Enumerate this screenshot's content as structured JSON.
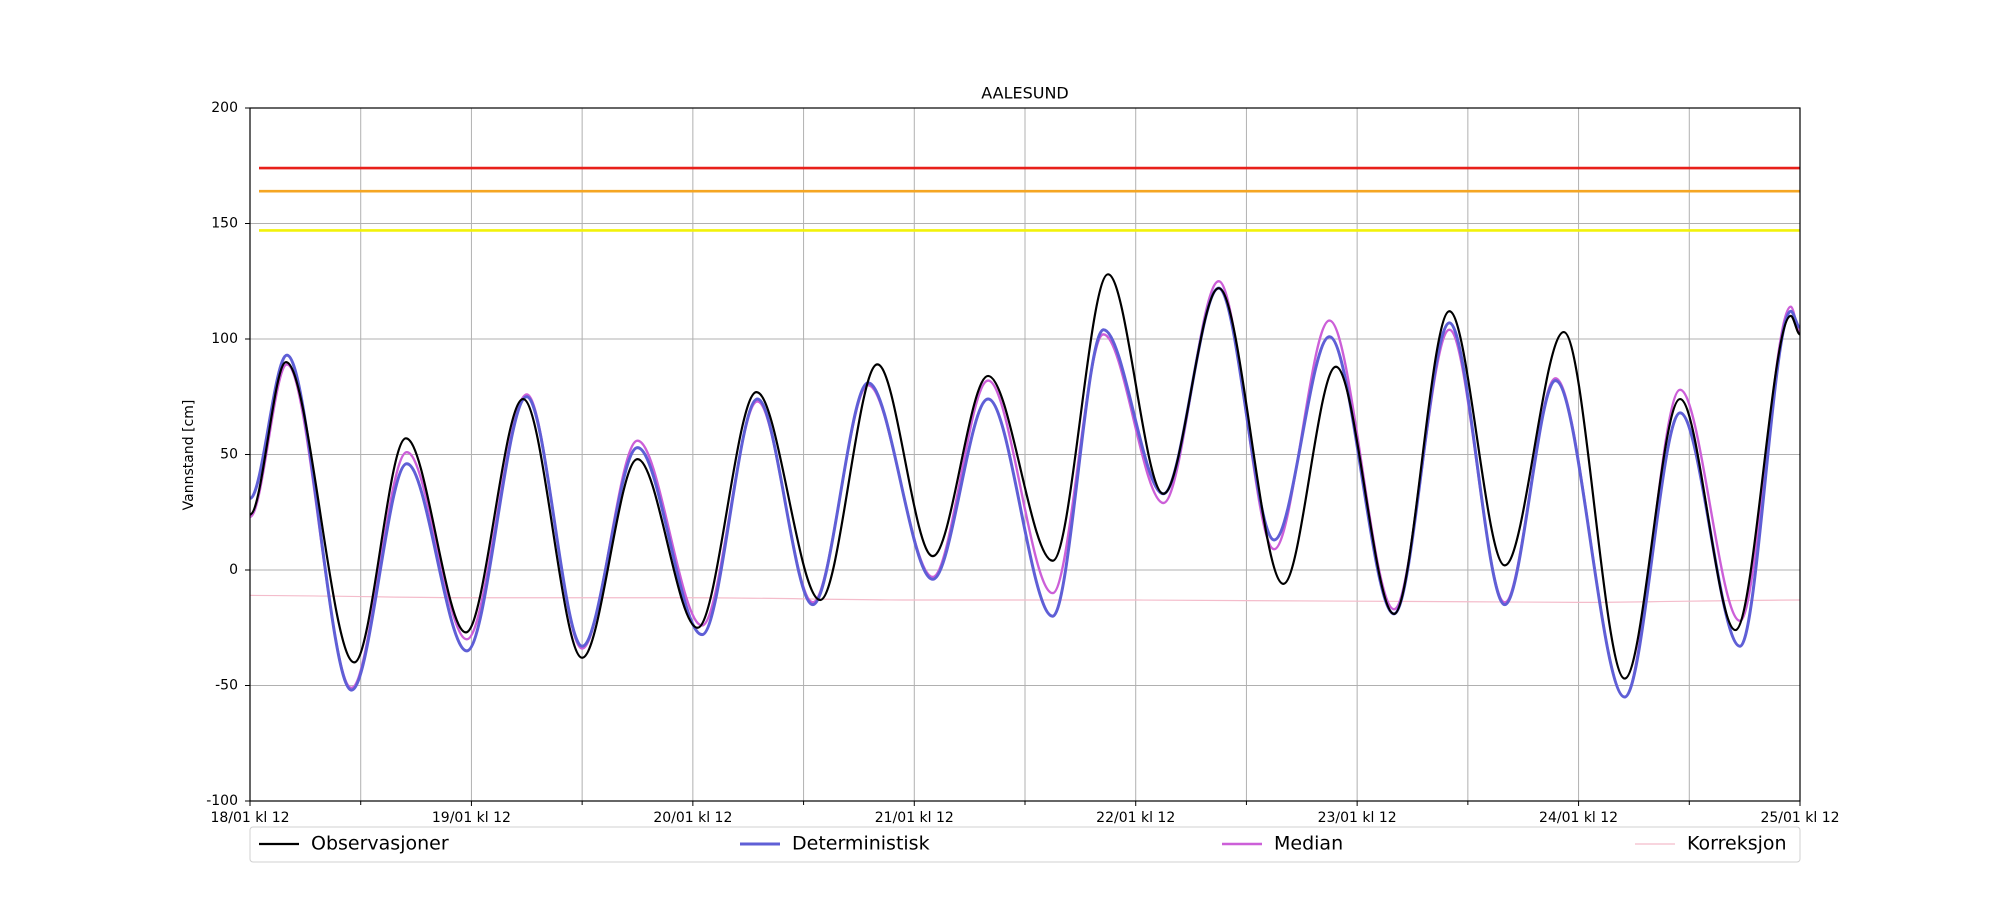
{
  "chart_data": {
    "type": "line",
    "title": "AALESUND",
    "y_label": "Vannstand [cm]",
    "xlim": [
      0,
      168
    ],
    "xticks": [
      {
        "value": 0,
        "label": "18/01 kl 12"
      },
      {
        "value": 24,
        "label": "19/01 kl 12"
      },
      {
        "value": 48,
        "label": "20/01 kl 12"
      },
      {
        "value": 72,
        "label": "21/01 kl 12"
      },
      {
        "value": 96,
        "label": "22/01 kl 12"
      },
      {
        "value": 120,
        "label": "23/01 kl 12"
      },
      {
        "value": 144,
        "label": "24/01 kl 12"
      },
      {
        "value": 168,
        "label": "25/01 kl 12"
      }
    ],
    "xminorticks": [
      12,
      36,
      60,
      84,
      108,
      132,
      156
    ],
    "ylim": [
      -100,
      200
    ],
    "yticks": [
      -100,
      -50,
      0,
      50,
      100,
      150,
      200
    ],
    "grid": true,
    "legend": "below",
    "hlines": [
      {
        "value": 174,
        "color": "#e8201a"
      },
      {
        "value": 164,
        "color": "#f5a623"
      },
      {
        "value": 147,
        "color": "#f2f20a"
      }
    ],
    "series": [
      {
        "name": "Observasjoner",
        "color": "#000000",
        "x": [
          0,
          3.9,
          11.3,
          16.9,
          23.4,
          29.6,
          36,
          42,
          48.5,
          54.9,
          61.8,
          68,
          74,
          80,
          87,
          93,
          99,
          105,
          112,
          117.7,
          124,
          130,
          136,
          142.4,
          149,
          155,
          161,
          167,
          168
        ],
        "values": [
          24,
          90,
          -40,
          57,
          -27,
          74,
          -38,
          48,
          -25,
          77,
          -13,
          89,
          6,
          84,
          4,
          128,
          33,
          122,
          -6,
          88,
          -19,
          112,
          2,
          103,
          -47,
          74,
          -26,
          110,
          102
        ]
      },
      {
        "name": "Deterministisk",
        "color": "#5f5fd6",
        "x": [
          0,
          4,
          11,
          17,
          23.5,
          30,
          36,
          42,
          49,
          55,
          61,
          67,
          74,
          80,
          87,
          92.5,
          99,
          105,
          111,
          117,
          124,
          130,
          136,
          141.5,
          149,
          155,
          161.5,
          167,
          168
        ],
        "values": [
          31,
          93,
          -52,
          46,
          -35,
          75,
          -33,
          53,
          -28,
          74,
          -15,
          81,
          -4,
          74,
          -20,
          104,
          33,
          122,
          13,
          101,
          -19,
          107,
          -15,
          82,
          -55,
          68,
          -33,
          112,
          105
        ]
      },
      {
        "name": "Median",
        "color": "#cc5fd8",
        "x": [
          0,
          4,
          11,
          17,
          23.5,
          30,
          36,
          42,
          49,
          55,
          61,
          67,
          74,
          80,
          87,
          92.5,
          99,
          105,
          111,
          117,
          124,
          130,
          136,
          141.5,
          149,
          155,
          161.5,
          167,
          168
        ],
        "values": [
          23,
          89,
          -51,
          51,
          -30,
          76,
          -34,
          56,
          -24,
          73,
          -14,
          80,
          -3,
          82,
          -10,
          102,
          29,
          125,
          9,
          108,
          -17,
          104,
          -14,
          83,
          -55,
          78,
          -22,
          114,
          103
        ]
      },
      {
        "name": "Korreksjon",
        "color": "#f4bccb",
        "x": [
          0,
          24,
          48,
          72,
          96,
          120,
          144,
          168
        ],
        "values": [
          -11,
          -12,
          -12,
          -13,
          -13,
          -13.5,
          -14,
          -13
        ]
      }
    ]
  }
}
